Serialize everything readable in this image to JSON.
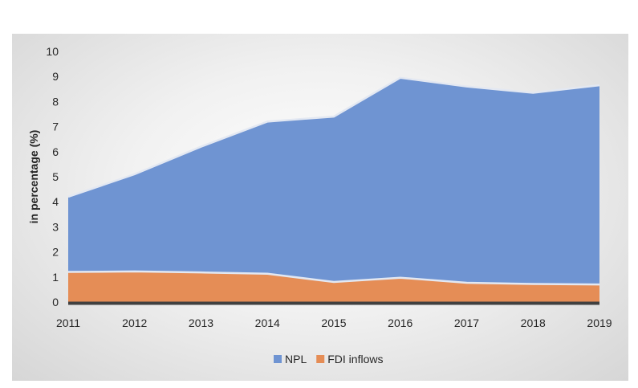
{
  "chart_data": {
    "type": "area",
    "stacked": false,
    "x": [
      "2011",
      "2012",
      "2013",
      "2014",
      "2015",
      "2016",
      "2017",
      "2018",
      "2019"
    ],
    "series": [
      {
        "name": "NPL",
        "values": [
          4.2,
          5.1,
          6.2,
          7.2,
          7.4,
          8.95,
          8.6,
          8.35,
          8.65
        ],
        "color": "#6f94d2"
      },
      {
        "name": "FDI inflows",
        "values": [
          1.2,
          1.22,
          1.18,
          1.13,
          0.8,
          0.97,
          0.77,
          0.72,
          0.7
        ],
        "color": "#e58d56"
      }
    ],
    "title": "",
    "xlabel": "",
    "ylabel": "in percentage (%)",
    "ylim": [
      0,
      10
    ],
    "yticks": [
      "0",
      "1",
      "2",
      "3",
      "4",
      "5",
      "6",
      "7",
      "8",
      "9",
      "10"
    ],
    "grid": false,
    "legend_position": "bottom"
  }
}
